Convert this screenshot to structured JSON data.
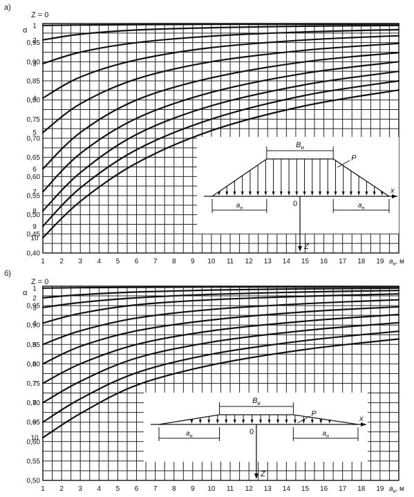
{
  "chart_data": [
    {
      "type": "line",
      "panel_label": "а)",
      "title": "Z = 0",
      "ylabel": "α",
      "xlabel": "a",
      "xlabel_sub": "н",
      "xlabel_unit": ", м",
      "xlim": [
        1,
        20
      ],
      "ylim": [
        0.4,
        1.0
      ],
      "x_ticks": [
        "1",
        "2",
        "3",
        "4",
        "5",
        "6",
        "7",
        "8",
        "9",
        "10",
        "11",
        "12",
        "13",
        "14",
        "15",
        "16",
        "17",
        "18",
        "19"
      ],
      "y_ticks": [
        {
          "v": 0.95,
          "t": "0,95"
        },
        {
          "v": 0.9,
          "t": "0,90"
        },
        {
          "v": 0.85,
          "t": "0,85"
        },
        {
          "v": 0.8,
          "t": "0,80"
        },
        {
          "v": 0.75,
          "t": "0,75"
        },
        {
          "v": 0.7,
          "t": "0,70"
        },
        {
          "v": 0.65,
          "t": "0,65"
        },
        {
          "v": 0.6,
          "t": "0,60"
        },
        {
          "v": 0.55,
          "t": "0,55"
        },
        {
          "v": 0.5,
          "t": "0,50"
        },
        {
          "v": 0.45,
          "t": "0,45"
        },
        {
          "v": 0.4,
          "t": "0,40"
        }
      ],
      "series": [
        {
          "name": "1",
          "x": [
            1,
            3,
            6,
            10,
            15,
            20
          ],
          "values": [
            0.995,
            0.996,
            0.997,
            0.998,
            0.998,
            0.999
          ]
        },
        {
          "name": "2",
          "x": [
            1,
            3,
            6,
            10,
            15,
            20
          ],
          "values": [
            0.957,
            0.972,
            0.983,
            0.989,
            0.993,
            0.995
          ]
        },
        {
          "name": "3",
          "x": [
            1,
            3,
            6,
            10,
            15,
            20
          ],
          "values": [
            0.895,
            0.925,
            0.95,
            0.967,
            0.978,
            0.984
          ]
        },
        {
          "name": "4",
          "x": [
            1,
            3,
            6,
            10,
            15,
            20
          ],
          "values": [
            0.805,
            0.86,
            0.905,
            0.937,
            0.957,
            0.968
          ]
        },
        {
          "name": "5",
          "x": [
            1,
            3,
            6,
            10,
            15,
            20
          ],
          "values": [
            0.715,
            0.79,
            0.855,
            0.9,
            0.93,
            0.948
          ]
        },
        {
          "name": "6",
          "x": [
            1,
            3,
            6,
            10,
            15,
            20
          ],
          "values": [
            0.62,
            0.715,
            0.8,
            0.858,
            0.9,
            0.924
          ]
        },
        {
          "name": "7",
          "x": [
            1,
            3,
            6,
            10,
            15,
            20
          ],
          "values": [
            0.56,
            0.66,
            0.752,
            0.82,
            0.87,
            0.9
          ]
        },
        {
          "name": "8",
          "x": [
            1,
            3,
            6,
            10,
            15,
            20
          ],
          "values": [
            0.51,
            0.61,
            0.71,
            0.785,
            0.84,
            0.875
          ]
        },
        {
          "name": "9",
          "x": [
            1,
            3,
            6,
            10,
            15,
            20
          ],
          "values": [
            0.47,
            0.57,
            0.67,
            0.75,
            0.812,
            0.85
          ]
        },
        {
          "name": "10",
          "x": [
            1,
            3,
            6,
            10,
            15,
            20
          ],
          "values": [
            0.44,
            0.535,
            0.635,
            0.72,
            0.785,
            0.826
          ]
        }
      ],
      "grid": true,
      "inset": {
        "top_label": "B",
        "top_sub": "н",
        "load_label": "P",
        "left_label": "a",
        "left_sub": "н",
        "right_label": "a",
        "right_sub": "н",
        "origin_label": "0",
        "x_axis_label": "x",
        "z_axis_label": "Z"
      }
    },
    {
      "type": "line",
      "panel_label": "б)",
      "title": "Z = 0",
      "ylabel": "α",
      "xlabel": "a",
      "xlabel_sub": "н",
      "xlabel_unit": ", м",
      "xlim": [
        1,
        20
      ],
      "ylim": [
        0.5,
        1.0
      ],
      "x_ticks": [
        "1",
        "2",
        "3",
        "4",
        "5",
        "6",
        "7",
        "8",
        "9",
        "10",
        "11",
        "12",
        "13",
        "14",
        "15",
        "16",
        "17",
        "18",
        "19"
      ],
      "y_ticks": [
        {
          "v": 0.95,
          "t": "0,95"
        },
        {
          "v": 0.9,
          "t": "0,90"
        },
        {
          "v": 0.85,
          "t": "0,85"
        },
        {
          "v": 0.8,
          "t": "0,80"
        },
        {
          "v": 0.75,
          "t": "0,75"
        },
        {
          "v": 0.7,
          "t": "0,70"
        },
        {
          "v": 0.65,
          "t": "0,65"
        },
        {
          "v": 0.6,
          "t": "0,60"
        },
        {
          "v": 0.55,
          "t": "0,55"
        },
        {
          "v": 0.5,
          "t": "0,50"
        }
      ],
      "series": [
        {
          "name": "1",
          "x": [
            1,
            3,
            6,
            10,
            15,
            20
          ],
          "values": [
            0.995,
            0.996,
            0.997,
            0.998,
            0.998,
            0.999
          ]
        },
        {
          "name": "2",
          "x": [
            1,
            3,
            6,
            10,
            15,
            20
          ],
          "values": [
            0.97,
            0.978,
            0.985,
            0.99,
            0.993,
            0.995
          ]
        },
        {
          "name": "3",
          "x": [
            1,
            3,
            6,
            10,
            15,
            20
          ],
          "values": [
            0.945,
            0.958,
            0.97,
            0.979,
            0.985,
            0.989
          ]
        },
        {
          "name": "4",
          "x": [
            1,
            3,
            6,
            10,
            15,
            20
          ],
          "values": [
            0.905,
            0.93,
            0.952,
            0.965,
            0.974,
            0.98
          ]
        },
        {
          "name": "5",
          "x": [
            1,
            3,
            6,
            10,
            15,
            20
          ],
          "values": [
            0.85,
            0.885,
            0.918,
            0.94,
            0.955,
            0.965
          ]
        },
        {
          "name": "6",
          "x": [
            1,
            3,
            6,
            10,
            15,
            20
          ],
          "values": [
            0.8,
            0.845,
            0.885,
            0.913,
            0.934,
            0.947
          ]
        },
        {
          "name": "7",
          "x": [
            1,
            3,
            6,
            10,
            15,
            20
          ],
          "values": [
            0.75,
            0.8,
            0.85,
            0.885,
            0.91,
            0.927
          ]
        },
        {
          "name": "8",
          "x": [
            1,
            3,
            6,
            10,
            15,
            20
          ],
          "values": [
            0.7,
            0.755,
            0.815,
            0.856,
            0.886,
            0.906
          ]
        },
        {
          "name": "9",
          "x": [
            1,
            3,
            6,
            10,
            15,
            20
          ],
          "values": [
            0.65,
            0.71,
            0.777,
            0.825,
            0.86,
            0.884
          ]
        },
        {
          "name": "10",
          "x": [
            1,
            3,
            6,
            10,
            15,
            20
          ],
          "values": [
            0.61,
            0.672,
            0.745,
            0.797,
            0.837,
            0.864
          ]
        }
      ],
      "grid": true,
      "inset": {
        "top_label": "B",
        "top_sub": "н",
        "load_label": "P",
        "left_label": "a",
        "left_sub": "н",
        "right_label": "a",
        "right_sub": "н",
        "origin_label": "0",
        "x_axis_label": "x",
        "z_axis_label": "Z"
      }
    }
  ]
}
